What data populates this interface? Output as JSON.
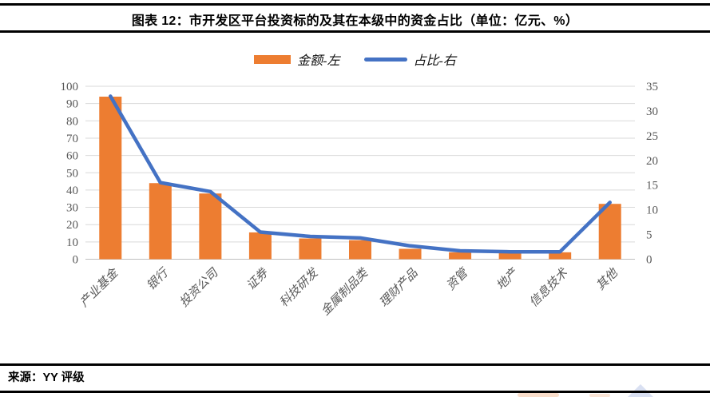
{
  "header": {
    "title": "图表 12：市开发区平台投资标的及其在本级中的资金占比（单位：亿元、%）"
  },
  "footer": {
    "source": "来源：YY 评级"
  },
  "colors": {
    "bar": "#ED7D31",
    "line": "#4472C4",
    "grid": "#D9D9D9",
    "axis_line": "#BFBFBF",
    "axis_text": "#595959",
    "rule": "#000000"
  },
  "chart_data": {
    "type": "combo (bar + line)",
    "title": "图表 12：市开发区平台投资标的及其在本级中的资金占比（单位：亿元、%）",
    "categories": [
      "产业基金",
      "银行",
      "投资公司",
      "证券",
      "科技研发",
      "金属制品类",
      "理财产品",
      "资管",
      "地产",
      "信息技术",
      "其他"
    ],
    "series": [
      {
        "name": "金额-左",
        "type": "bar",
        "axis": "left",
        "color": "#ED7D31",
        "values": [
          94,
          44,
          38,
          15.5,
          12,
          11,
          6,
          4,
          3.5,
          4,
          32
        ]
      },
      {
        "name": "占比-右",
        "type": "line",
        "axis": "right",
        "color": "#4472C4",
        "values": [
          33,
          15.5,
          13.7,
          5.5,
          4.6,
          4.3,
          2.7,
          1.7,
          1.5,
          1.5,
          11.5
        ]
      }
    ],
    "left_axis": {
      "min": 0,
      "max": 100,
      "step": 10,
      "ticks": [
        0,
        10,
        20,
        30,
        40,
        50,
        60,
        70,
        80,
        90,
        100
      ]
    },
    "right_axis": {
      "min": 0,
      "max": 35,
      "step": 5,
      "ticks": [
        0,
        5,
        10,
        15,
        20,
        25,
        30,
        35
      ]
    },
    "grid": true,
    "legend_position": "top-center",
    "x_tick_rotation": 45
  }
}
